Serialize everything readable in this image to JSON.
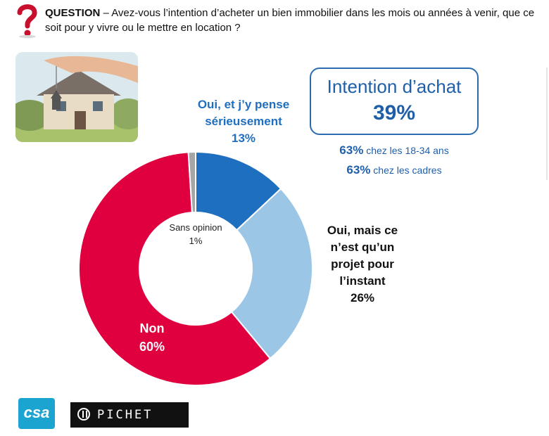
{
  "question": {
    "label": "QUESTION",
    "text": " – Avez-vous l’intention d’acheter un bien immobilier dans les mois ou années à venir, que ce soit pour y vivre ou le mettre en location ?"
  },
  "kpi": {
    "title": "Intention d’achat",
    "value": "39%",
    "details": [
      {
        "value": "63%",
        "text": " chez les 18-34 ans"
      },
      {
        "value": "63%",
        "text": " chez les cadres"
      }
    ]
  },
  "logos": {
    "csa": "csa",
    "pichet": "PICHET"
  },
  "colors": {
    "serious": "#1f6fc0",
    "projet": "#9cc6e6",
    "non": "#e0003f",
    "sans": "#a6a6a6"
  },
  "chart_data": {
    "type": "pie",
    "donut": true,
    "slices": [
      {
        "key": "serious",
        "label": "Oui, et j’y pense sérieusement",
        "value": 13,
        "value_label": "13%"
      },
      {
        "key": "projet",
        "label": "Oui, mais ce n’est qu’un projet pour l’instant",
        "value": 26,
        "value_label": "26%"
      },
      {
        "key": "non",
        "label": "Non",
        "value": 60,
        "value_label": "60%"
      },
      {
        "key": "sans",
        "label": "Sans opinion",
        "value": 1,
        "value_label": "1%"
      }
    ]
  }
}
